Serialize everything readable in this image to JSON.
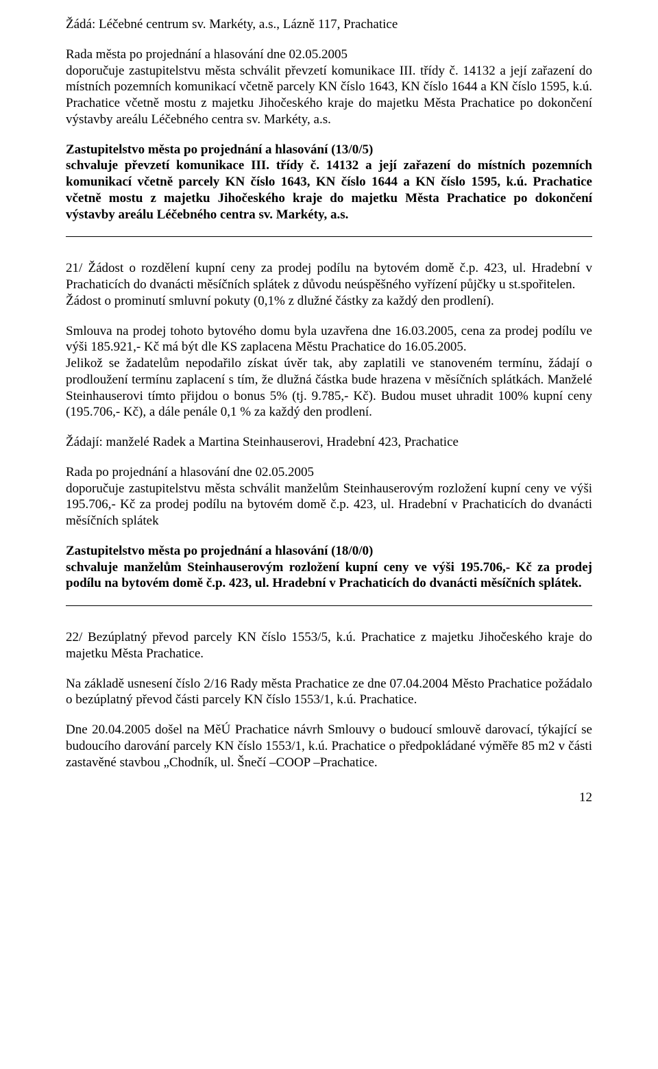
{
  "p1": "Žádá: Léčebné centrum sv. Markéty, a.s., Lázně 117, Prachatice",
  "p2": "Rada města po projednání a hlasování dne 02.05.2005",
  "p3": "doporučuje zastupitelstvu města schválit převzetí komunikace III. třídy č. 14132 a její zařazení do místních pozemních komunikací včetně parcely KN číslo 1643, KN číslo 1644 a KN číslo 1595, k.ú. Prachatice včetně mostu z majetku Jihočeského kraje do majetku Města Prachatice po dokončení výstavby areálu Léčebného centra sv. Markéty, a.s.",
  "p4": "Zastupitelstvo města po projednání a hlasování  (13/0/5)",
  "p5": "schvaluje převzetí komunikace III. třídy č. 14132 a její zařazení do místních pozemních komunikací včetně parcely KN číslo 1643, KN číslo 1644 a KN číslo 1595, k.ú. Prachatice včetně mostu z majetku Jihočeského kraje do majetku Města Prachatice po dokončení výstavby areálu Léčebného centra sv. Markéty, a.s.",
  "p6": "21/ Žádost o rozdělení kupní ceny za prodej podílu na bytovém domě č.p. 423, ul. Hradební v Prachaticích do dvanácti měsíčních splátek z důvodu neúspěšného vyřízení půjčky u st.spořitelen.",
  "p7": "Žádost o prominutí smluvní pokuty (0,1% z dlužné částky za každý den prodlení).",
  "p8": "Smlouva na prodej tohoto bytového domu byla uzavřena dne 16.03.2005, cena za prodej podílu ve výši 185.921,- Kč má být dle KS zaplacena Městu Prachatice do 16.05.2005.",
  "p9": "Jelikož se žadatelům nepodařilo získat úvěr tak, aby zaplatili ve stanoveném termínu, žádají o prodloužení termínu zaplacení s tím, že dlužná částka bude hrazena v měsíčních splátkách. Manželé Steinhauserovi tímto přijdou o bonus 5% (tj. 9.785,- Kč). Budou muset uhradit 100% kupní ceny (195.706,- Kč),  a dále penále 0,1 % za každý den prodlení.",
  "p10": "Žádají: manželé Radek a Martina Steinhauserovi, Hradební 423, Prachatice",
  "p11": "Rada po projednání a hlasování dne 02.05.2005",
  "p12": "doporučuje zastupitelstvu města schválit manželům Steinhauserovým rozložení kupní ceny ve výši 195.706,- Kč za prodej podílu na bytovém domě č.p. 423, ul. Hradební v Prachaticích do dvanácti měsíčních splátek",
  "p13": "Zastupitelstvo města po projednání a hlasování  (18/0/0)",
  "p14": "schvaluje manželům Steinhauserovým rozložení kupní ceny ve výši 195.706,- Kč za prodej podílu na bytovém domě č.p. 423, ul. Hradební v Prachaticích do dvanácti měsíčních splátek.",
  "p15": "22/ Bezúplatný převod parcely KN číslo 1553/5, k.ú. Prachatice z majetku Jihočeského kraje do majetku Města Prachatice.",
  "p16": "Na základě usnesení číslo 2/16 Rady města Prachatice ze dne 07.04.2004 Město Prachatice požádalo o bezúplatný převod části parcely KN číslo 1553/1, k.ú. Prachatice.",
  "p17": "Dne 20.04.2005 došel na MěÚ Prachatice návrh Smlouvy o budoucí smlouvě darovací, týkající se budoucího darování parcely KN číslo 1553/1, k.ú. Prachatice o předpokládané výměře 85 m2 v části zastavěné stavbou „Chodník, ul. Šnečí –COOP –Prachatice.",
  "pagenum": "12"
}
